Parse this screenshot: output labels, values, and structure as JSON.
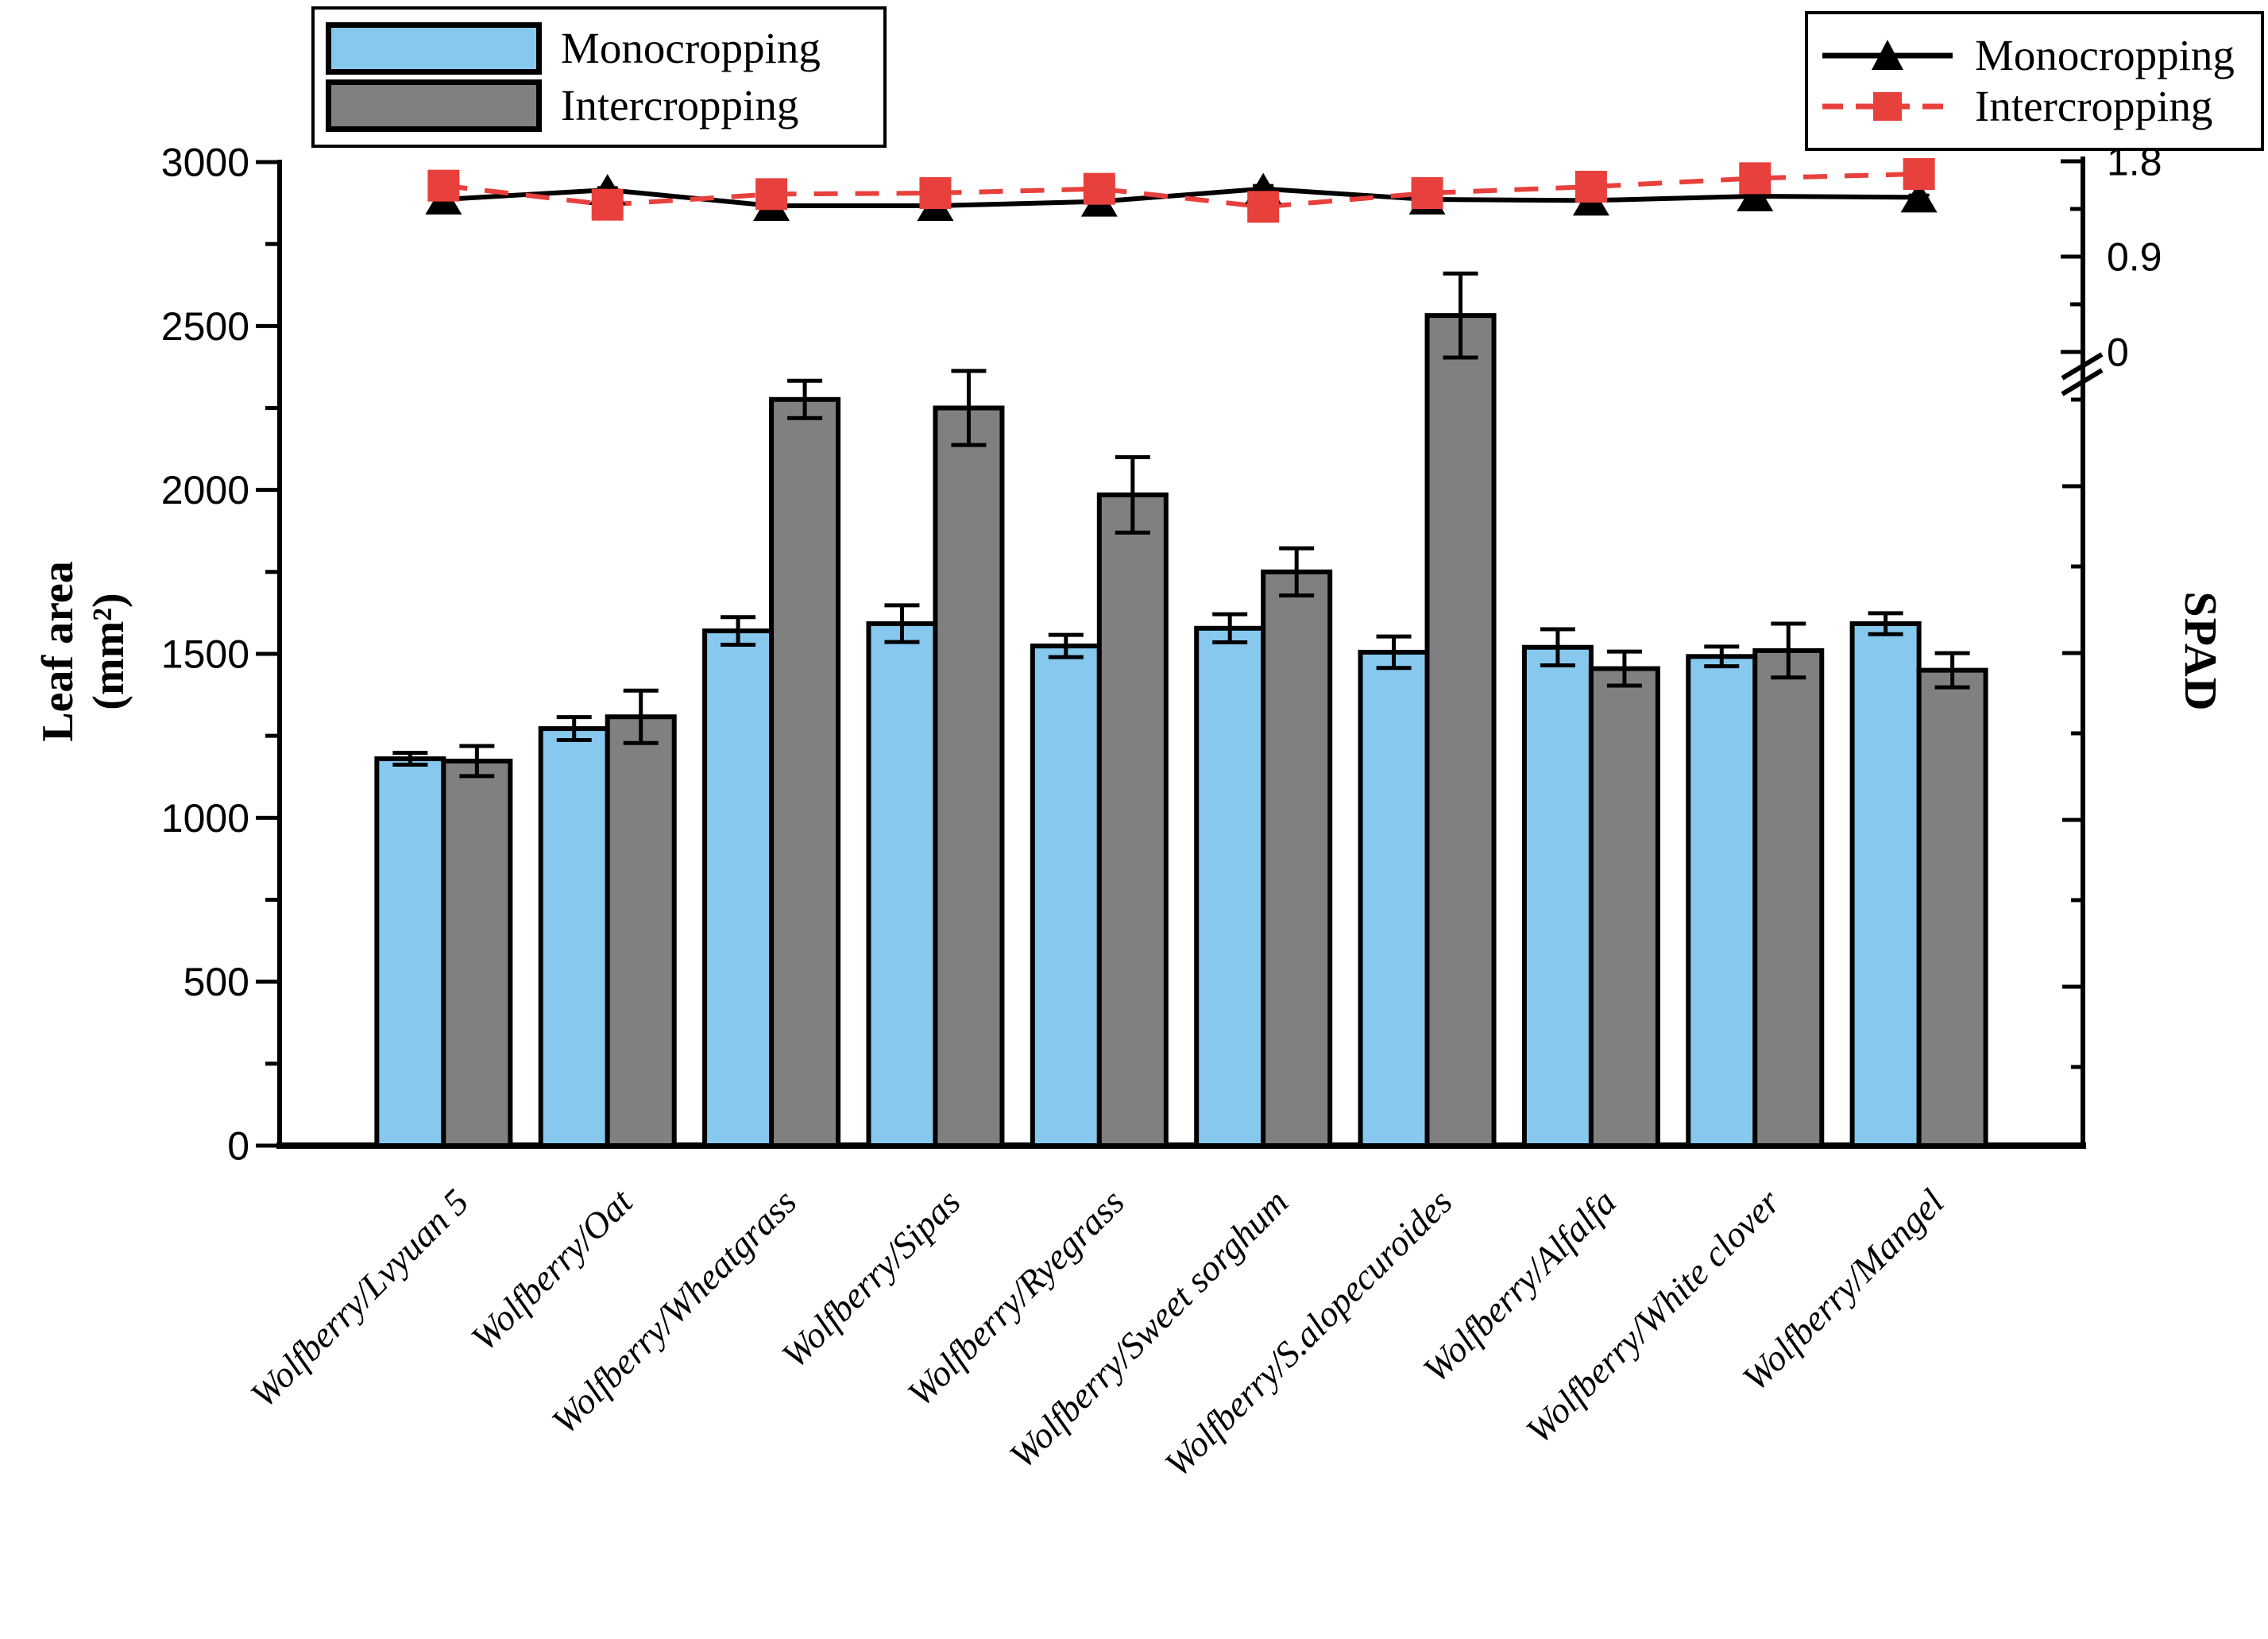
{
  "figure": {
    "background": "#ffffff",
    "bar_legend": {
      "items": [
        {
          "label": "Monocropping",
          "color": "#87C8EE"
        },
        {
          "label": "Intercropping",
          "color": "#808080"
        }
      ]
    },
    "line_legend": {
      "items": [
        {
          "label": "Monocropping",
          "color": "#000000",
          "marker": "triangle",
          "line_style": "solid"
        },
        {
          "label": "Intercropping",
          "color": "#E8403C",
          "marker": "square",
          "line_style": "dashed"
        }
      ]
    }
  },
  "chart_data": {
    "type": "bar",
    "categories": [
      "Wolfberry/Lvyuan 5",
      "Wolfberry/Oat",
      "Wolfberry/Wheatgrass",
      "Wolfberry/Sipas",
      "Wolfberry/Ryegrass",
      "Wolfberry/Sweet sorghum",
      "Wolfberry/S.alopecuroides",
      "Wolfberry/Alfalfa",
      "Wolfberry/White clover",
      "Wolfberry/Mangel"
    ],
    "left_axis": {
      "title": "Leaf area",
      "title_unit": "(mm²)",
      "min": 0,
      "max": 3000,
      "major_tick_labels": [
        "0",
        "500",
        "1000",
        "1500",
        "2000",
        "2500",
        "3000"
      ],
      "major_step": 500,
      "minor_step": 250
    },
    "right_axis": {
      "title": "SPAD",
      "labeled_ticks": [
        1.8,
        0.9,
        0
      ],
      "minor_ticks": [
        1.35,
        0.45
      ],
      "has_axis_break_below_zero": true
    },
    "series": [
      {
        "id": "leaf-monocropping",
        "kind": "bar",
        "name": "Monocropping",
        "color": "#87C8EE",
        "values": [
          1180,
          1272,
          1570,
          1592,
          1524,
          1578,
          1505,
          1520,
          1492,
          1592
        ],
        "errors": [
          18,
          35,
          42,
          56,
          34,
          43,
          48,
          55,
          30,
          32
        ]
      },
      {
        "id": "leaf-intercropping",
        "kind": "bar",
        "name": "Intercropping",
        "color": "#808080",
        "values": [
          1173,
          1308,
          2276,
          2250,
          1985,
          1750,
          2532,
          1455,
          1510,
          1450
        ],
        "errors": [
          46,
          80,
          57,
          113,
          115,
          72,
          128,
          52,
          82,
          52
        ]
      },
      {
        "id": "spad-monocropping",
        "kind": "line",
        "name": "Monocropping",
        "color": "#000000",
        "marker": "triangle",
        "line_style": "solid",
        "values": [
          1.44,
          1.53,
          1.38,
          1.38,
          1.42,
          1.54,
          1.44,
          1.43,
          1.47,
          1.46
        ],
        "errors": [
          0.02,
          0.02,
          0.02,
          0.02,
          0.02,
          0.03,
          0.02,
          0.02,
          0.02,
          0.02
        ]
      },
      {
        "id": "spad-intercropping",
        "kind": "line",
        "name": "Intercropping",
        "color": "#E8403C",
        "marker": "square",
        "line_style": "dashed",
        "values": [
          1.57,
          1.39,
          1.49,
          1.5,
          1.54,
          1.37,
          1.5,
          1.56,
          1.64,
          1.68
        ],
        "errors": [
          0.03,
          0.03,
          0.03,
          0.03,
          0.04,
          0.05,
          0.03,
          0.03,
          0.03,
          0.03
        ]
      }
    ]
  }
}
